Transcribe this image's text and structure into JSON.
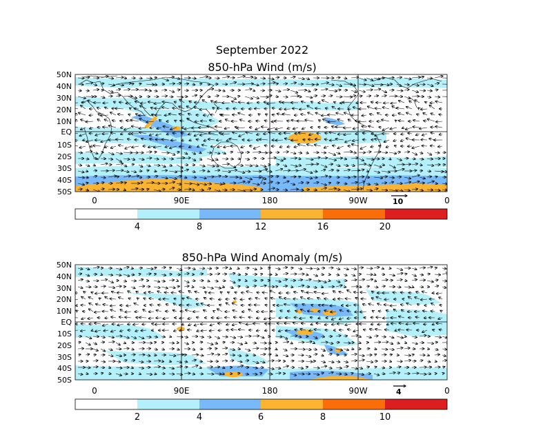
{
  "header": {
    "title": "September 2022"
  },
  "colors": {
    "c0": "#ffffff",
    "c1": "#b4f0fa",
    "c2": "#78b9fa",
    "c3": "#fab432",
    "c4": "#fa6e0a",
    "c5": "#dc1e1e",
    "grid": "#000000"
  },
  "panels": [
    {
      "title": "850-hPa Wind (m/s)",
      "lat_labels": [
        "50N",
        "40N",
        "30N",
        "20N",
        "10N",
        "EQ",
        "10S",
        "20S",
        "30S",
        "40S",
        "50S"
      ],
      "lon_labels": [
        "0",
        "90E",
        "180",
        "90W",
        "0"
      ],
      "reference_vector": "10",
      "colorbar": {
        "labels": [
          "4",
          "8",
          "12",
          "16",
          "20"
        ]
      }
    },
    {
      "title": "850-hPa Wind Anomaly (m/s)",
      "lat_labels": [
        "50N",
        "40N",
        "30N",
        "20N",
        "10N",
        "EQ",
        "10S",
        "20S",
        "30S",
        "40S",
        "50S"
      ],
      "lon_labels": [
        "0",
        "90E",
        "180",
        "90W",
        "0"
      ],
      "reference_vector": "4",
      "colorbar": {
        "labels": [
          "2",
          "4",
          "6",
          "8",
          "10"
        ]
      }
    }
  ]
}
